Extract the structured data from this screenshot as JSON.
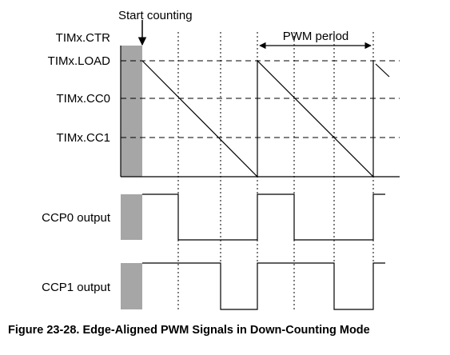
{
  "diagram": {
    "start_label": "Start counting",
    "period_label": "PWM period",
    "counter_label": "TIMx.CTR",
    "load_label": "TIMx.LOAD",
    "cc0_label": "TIMx.CC0",
    "cc1_label": "TIMx.CC1",
    "ccp0_label": "CCP0 output",
    "ccp1_label": "CCP1 output",
    "caption": "Figure 23-28. Edge-Aligned PWM Signals in Down-Counting Mode"
  }
}
